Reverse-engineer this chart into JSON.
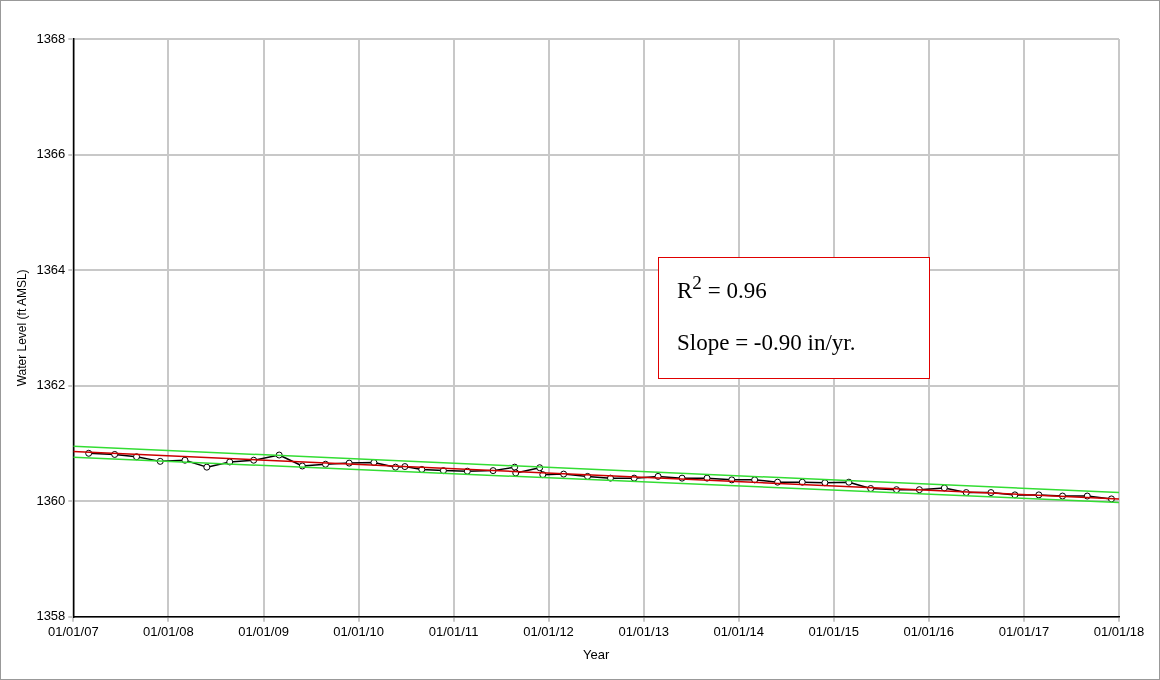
{
  "chart_data": {
    "type": "line",
    "xlabel": "Year",
    "ylabel": "Water Level (ft AMSL)",
    "xlim": [
      "2007-01-01",
      "2018-01-01"
    ],
    "xticks": [
      {
        "value": "2007-01-01",
        "label": "01/01/07"
      },
      {
        "value": "2008-01-01",
        "label": "01/01/08"
      },
      {
        "value": "2009-01-01",
        "label": "01/01/09"
      },
      {
        "value": "2010-01-01",
        "label": "01/01/10"
      },
      {
        "value": "2011-01-01",
        "label": "01/01/11"
      },
      {
        "value": "2012-01-01",
        "label": "01/01/12"
      },
      {
        "value": "2013-01-01",
        "label": "01/01/13"
      },
      {
        "value": "2014-01-01",
        "label": "01/01/14"
      },
      {
        "value": "2015-01-01",
        "label": "01/01/15"
      },
      {
        "value": "2016-01-01",
        "label": "01/01/16"
      },
      {
        "value": "2017-01-01",
        "label": "01/01/17"
      },
      {
        "value": "2018-01-01",
        "label": "01/01/18"
      }
    ],
    "ylim": [
      1358,
      1368
    ],
    "yticks": [
      1358,
      1360,
      1362,
      1364,
      1366,
      1368
    ],
    "grid": true,
    "legend": false,
    "series": [
      {
        "color": "#33dd33",
        "marker": "none",
        "x": [
          "2007-01-01",
          "2018-01-01"
        ],
        "values": [
          1360.95,
          1360.15
        ]
      },
      {
        "color": "#33dd33",
        "marker": "none",
        "x": [
          "2007-01-01",
          "2018-01-01"
        ],
        "values": [
          1360.76,
          1359.98
        ]
      },
      {
        "color": "#cc0000",
        "marker": "none",
        "x": [
          "2007-01-01",
          "2018-01-01"
        ],
        "values": [
          1360.86,
          1360.04
        ]
      },
      {
        "color": "#000000",
        "marker": "circle",
        "x": [
          "2007-03-01",
          "2007-06-09",
          "2007-09-01",
          "2007-12-01",
          "2008-03-05",
          "2008-05-28",
          "2008-08-24",
          "2008-11-24",
          "2009-03-02",
          "2009-05-30",
          "2009-08-27",
          "2009-11-26",
          "2010-03-01",
          "2010-05-23",
          "2010-06-28",
          "2010-09-01",
          "2010-11-23",
          "2011-02-23",
          "2011-06-02",
          "2011-08-24",
          "2011-08-28",
          "2011-11-28",
          "2011-12-10",
          "2012-02-28",
          "2012-05-30",
          "2012-08-26",
          "2012-11-25",
          "2013-02-25",
          "2013-05-28",
          "2013-09-01",
          "2013-12-05",
          "2014-03-03",
          "2014-05-30",
          "2014-09-02",
          "2014-11-28",
          "2015-02-28",
          "2015-05-23",
          "2015-08-30",
          "2015-11-26",
          "2016-03-01",
          "2016-05-24",
          "2016-08-27",
          "2016-11-27",
          "2017-02-27",
          "2017-05-29",
          "2017-09-01",
          "2017-12-03"
        ],
        "values": [
          1360.83,
          1360.81,
          1360.77,
          1360.69,
          1360.71,
          1360.59,
          1360.68,
          1360.71,
          1360.8,
          1360.61,
          1360.64,
          1360.66,
          1360.67,
          1360.59,
          1360.6,
          1360.55,
          1360.53,
          1360.52,
          1360.53,
          1360.59,
          1360.49,
          1360.58,
          1360.46,
          1360.47,
          1360.43,
          1360.4,
          1360.4,
          1360.43,
          1360.4,
          1360.4,
          1360.37,
          1360.37,
          1360.33,
          1360.33,
          1360.32,
          1360.33,
          1360.22,
          1360.2,
          1360.2,
          1360.23,
          1360.15,
          1360.15,
          1360.11,
          1360.11,
          1360.09,
          1360.09,
          1360.04
        ]
      }
    ],
    "annotations": [
      "R$^{2}$ = 0.96",
      "Slope = -0.90 in/yr."
    ]
  }
}
